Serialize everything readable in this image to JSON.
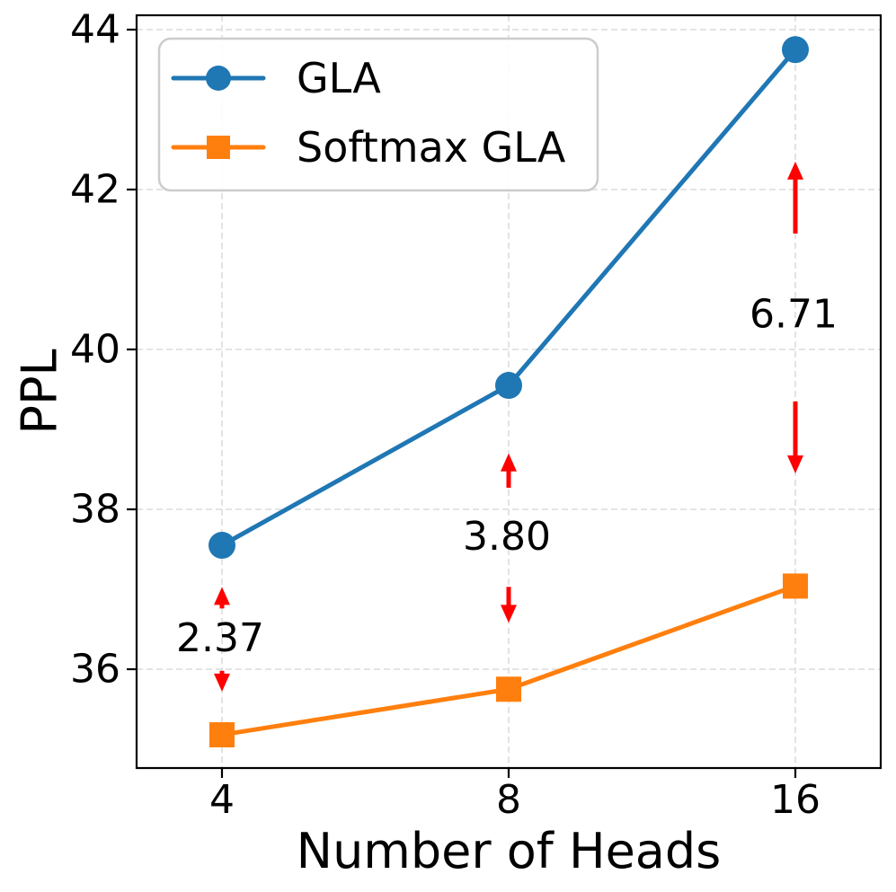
{
  "chart_data": {
    "type": "line",
    "title": "",
    "xlabel": "Number of Heads",
    "ylabel": "PPL",
    "x": [
      4,
      8,
      16
    ],
    "x_scale": "log2",
    "xtick_labels": [
      "4",
      "8",
      "16"
    ],
    "yticks": [
      36,
      38,
      40,
      42,
      44
    ],
    "ylim": [
      34.76,
      44.18
    ],
    "grid": true,
    "grid_style": "dashed",
    "grid_color": "#dcdcdc",
    "legend_position": "upper-left",
    "series": [
      {
        "name": "GLA",
        "color": "#1f77b4",
        "marker": "circle",
        "values": [
          37.55,
          39.55,
          43.75
        ]
      },
      {
        "name": "Softmax GLA",
        "color": "#ff7f0e",
        "marker": "square",
        "values": [
          35.18,
          35.75,
          37.04
        ]
      }
    ],
    "annotations": [
      {
        "label": "2.37",
        "x": 4,
        "text_y": 36.39,
        "arrow_up": [
          36.76,
          37.03
        ],
        "arrow_down": [
          35.98,
          35.72
        ],
        "color": "#ff0000"
      },
      {
        "label": "3.80",
        "x": 8,
        "text_y": 37.66,
        "arrow_up": [
          38.27,
          38.7
        ],
        "arrow_down": [
          37.03,
          36.58
        ],
        "color": "#ff0000"
      },
      {
        "label": "6.71",
        "x": 16,
        "text_y": 40.44,
        "arrow_up": [
          41.45,
          42.35
        ],
        "arrow_down": [
          39.35,
          38.45
        ],
        "color": "#ff0000"
      }
    ]
  }
}
